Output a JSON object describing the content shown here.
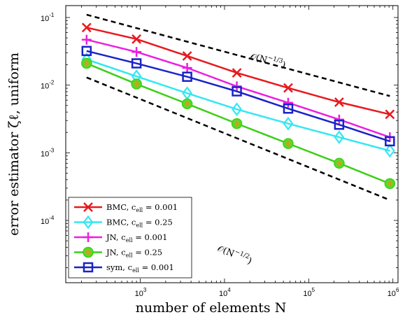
{
  "chart_data": {
    "type": "line",
    "x_scale": "log",
    "y_scale": "log",
    "xlim": [
      130,
      1150000
    ],
    "ylim": [
      1.2e-05,
      0.15
    ],
    "xlabel": "number of elements N",
    "ylabel": "error estimator ζℓ, uniform",
    "x_ticks": [
      {
        "value": 1000,
        "base": "10",
        "exp": "3"
      },
      {
        "value": 10000,
        "base": "10",
        "exp": "4"
      },
      {
        "value": 100000,
        "base": "10",
        "exp": "5"
      },
      {
        "value": 1000000,
        "base": "10",
        "exp": "6"
      }
    ],
    "y_ticks": [
      {
        "value": 0.1,
        "base": "10",
        "exp": "-1"
      },
      {
        "value": 0.01,
        "base": "10",
        "exp": "-2"
      },
      {
        "value": 0.001,
        "base": "10",
        "exp": "-3"
      },
      {
        "value": 0.0001,
        "base": "10",
        "exp": "-4"
      }
    ],
    "grid": false,
    "legend_position": "bottom-left",
    "x": [
      230,
      900,
      3600,
      14000,
      57000,
      230000,
      920000
    ],
    "series": [
      {
        "name": "BMC, c_ell = 0.001",
        "legend_main": "BMC, c",
        "legend_sub": "ell",
        "legend_tail": " = 0.001",
        "color": "#e8191e",
        "marker": "x",
        "values": [
          0.071,
          0.048,
          0.027,
          0.0152,
          0.0091,
          0.0056,
          0.0037
        ]
      },
      {
        "name": "BMC, c_ell = 0.25",
        "legend_main": "BMC, c",
        "legend_sub": "ell",
        "legend_tail": " = 0.25",
        "color": "#33e7f2",
        "marker": "diamond",
        "values": [
          0.024,
          0.0135,
          0.0076,
          0.0044,
          0.0027,
          0.0017,
          0.00107
        ]
      },
      {
        "name": "JN, c_ell = 0.001",
        "legend_main": "JN, c",
        "legend_sub": "ell",
        "legend_tail": " = 0.001",
        "color": "#ec1fe0",
        "marker": "plus",
        "values": [
          0.047,
          0.031,
          0.018,
          0.0096,
          0.0055,
          0.0031,
          0.0017
        ]
      },
      {
        "name": "JN, c_ell = 0.25",
        "legend_main": "JN, c",
        "legend_sub": "ell",
        "legend_tail": " = 0.25",
        "color": "#3ccf18",
        "marker": "star",
        "values": [
          0.021,
          0.0104,
          0.0053,
          0.0027,
          0.00137,
          0.0007,
          0.00035
        ]
      },
      {
        "name": "sym, c_ell = 0.001",
        "legend_main": "sym, c",
        "legend_sub": "ell",
        "legend_tail": " = 0.001",
        "color": "#1a22c8",
        "marker": "square",
        "values": [
          0.032,
          0.021,
          0.0133,
          0.0081,
          0.0045,
          0.0026,
          0.00148
        ]
      }
    ],
    "reference_lines": [
      {
        "label": "O(N^-1/3)",
        "text_main": "𝒪(N",
        "text_sup": "−1/3",
        "text_tail": ")",
        "x": [
          230,
          920000
        ],
        "y": [
          0.11,
          0.0069
        ]
      },
      {
        "label": "O(N^-1/2)",
        "text_main": "𝒪(N",
        "text_sup": "−1/2",
        "text_tail": ")",
        "x": [
          230,
          920000
        ],
        "y": [
          0.013,
          0.0002
        ]
      }
    ]
  }
}
